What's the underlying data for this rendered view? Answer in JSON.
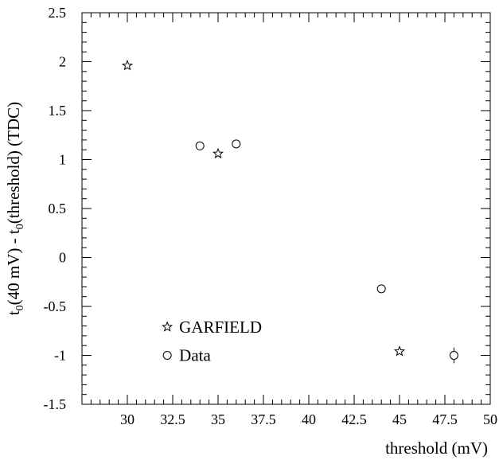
{
  "chart_data": {
    "type": "scatter",
    "title": "",
    "xlabel": "threshold (mV)",
    "ylabel_parts": [
      "t",
      "0",
      "(40 mV) - t",
      "0",
      "(threshold) (TDC)"
    ],
    "xlim": [
      27.5,
      50
    ],
    "ylim": [
      -1.5,
      2.5
    ],
    "x_ticks": [
      30,
      32.5,
      35,
      37.5,
      40,
      42.5,
      45,
      47.5,
      50
    ],
    "x_tick_labels": [
      "30",
      "32.5",
      "35",
      "37.5",
      "40",
      "42.5",
      "45",
      "47.5",
      "50"
    ],
    "y_ticks": [
      -1.5,
      -1,
      -0.5,
      0,
      0.5,
      1,
      1.5,
      2,
      2.5
    ],
    "y_tick_labels": [
      "-1.5",
      "-1",
      "-0.5",
      "0",
      "0.5",
      "1",
      "1.5",
      "2",
      "2.5"
    ],
    "grid": false,
    "legend_placement": "bottom-left",
    "series": [
      {
        "name": "GARFIELD",
        "marker": "star",
        "points": [
          {
            "x": 30,
            "y": 1.96
          },
          {
            "x": 35,
            "y": 1.06
          },
          {
            "x": 45,
            "y": -0.96
          }
        ]
      },
      {
        "name": "Data",
        "marker": "circle",
        "points": [
          {
            "x": 34,
            "y": 1.14,
            "err": 0.04
          },
          {
            "x": 36,
            "y": 1.16,
            "err": 0.04
          },
          {
            "x": 44,
            "y": -0.32,
            "err": 0.04
          },
          {
            "x": 48,
            "y": -1.0,
            "err": 0.08
          }
        ]
      }
    ]
  }
}
